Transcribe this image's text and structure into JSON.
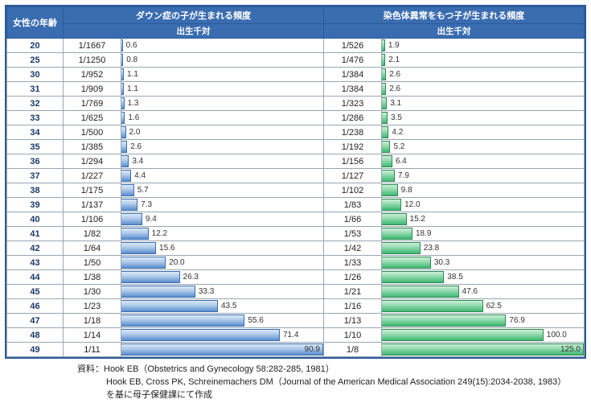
{
  "headers": {
    "age": "女性の年齢",
    "ds_title": "ダウン症の子が生まれる頻度",
    "ds_sub": "出生千対",
    "ab_title": "染色体異常をもつ子が生まれる頻度",
    "ab_sub": "出生千対"
  },
  "ds_max": 91,
  "ab_max": 125,
  "colors": {
    "header_bg": "#3a6cb0",
    "border": "#2a5a9a",
    "blue_bar_top": "#dce9f7",
    "blue_bar_bottom": "#5a8fd0",
    "green_bar_top": "#cdeed9",
    "green_bar_bottom": "#3fb873"
  },
  "rows": [
    {
      "age": "20",
      "ds_ratio": "1/1667",
      "ds_val": 0.6,
      "ab_ratio": "1/526",
      "ab_val": 1.9
    },
    {
      "age": "25",
      "ds_ratio": "1/1250",
      "ds_val": 0.8,
      "ab_ratio": "1/476",
      "ab_val": 2.1
    },
    {
      "age": "30",
      "ds_ratio": "1/952",
      "ds_val": 1.1,
      "ab_ratio": "1/384",
      "ab_val": 2.6
    },
    {
      "age": "31",
      "ds_ratio": "1/909",
      "ds_val": 1.1,
      "ab_ratio": "1/384",
      "ab_val": 2.6
    },
    {
      "age": "32",
      "ds_ratio": "1/769",
      "ds_val": 1.3,
      "ab_ratio": "1/323",
      "ab_val": 3.1
    },
    {
      "age": "33",
      "ds_ratio": "1/625",
      "ds_val": 1.6,
      "ab_ratio": "1/286",
      "ab_val": 3.5
    },
    {
      "age": "34",
      "ds_ratio": "1/500",
      "ds_val": 2.0,
      "ab_ratio": "1/238",
      "ab_val": 4.2
    },
    {
      "age": "35",
      "ds_ratio": "1/385",
      "ds_val": 2.6,
      "ab_ratio": "1/192",
      "ab_val": 5.2
    },
    {
      "age": "36",
      "ds_ratio": "1/294",
      "ds_val": 3.4,
      "ab_ratio": "1/156",
      "ab_val": 6.4
    },
    {
      "age": "37",
      "ds_ratio": "1/227",
      "ds_val": 4.4,
      "ab_ratio": "1/127",
      "ab_val": 7.9
    },
    {
      "age": "38",
      "ds_ratio": "1/175",
      "ds_val": 5.7,
      "ab_ratio": "1/102",
      "ab_val": 9.8
    },
    {
      "age": "39",
      "ds_ratio": "1/137",
      "ds_val": 7.3,
      "ab_ratio": "1/83",
      "ab_val": 12.0
    },
    {
      "age": "40",
      "ds_ratio": "1/106",
      "ds_val": 9.4,
      "ab_ratio": "1/66",
      "ab_val": 15.2
    },
    {
      "age": "41",
      "ds_ratio": "1/82",
      "ds_val": 12.2,
      "ab_ratio": "1/53",
      "ab_val": 18.9
    },
    {
      "age": "42",
      "ds_ratio": "1/64",
      "ds_val": 15.6,
      "ab_ratio": "1/42",
      "ab_val": 23.8
    },
    {
      "age": "43",
      "ds_ratio": "1/50",
      "ds_val": 20.0,
      "ab_ratio": "1/33",
      "ab_val": 30.3
    },
    {
      "age": "44",
      "ds_ratio": "1/38",
      "ds_val": 26.3,
      "ab_ratio": "1/26",
      "ab_val": 38.5
    },
    {
      "age": "45",
      "ds_ratio": "1/30",
      "ds_val": 33.3,
      "ab_ratio": "1/21",
      "ab_val": 47.6
    },
    {
      "age": "46",
      "ds_ratio": "1/23",
      "ds_val": 43.5,
      "ab_ratio": "1/16",
      "ab_val": 62.5
    },
    {
      "age": "47",
      "ds_ratio": "1/18",
      "ds_val": 55.6,
      "ab_ratio": "1/13",
      "ab_val": 76.9
    },
    {
      "age": "48",
      "ds_ratio": "1/14",
      "ds_val": 71.4,
      "ab_ratio": "1/10",
      "ab_val": 100.0
    },
    {
      "age": "49",
      "ds_ratio": "1/11",
      "ds_val": 90.9,
      "ab_ratio": "1/8",
      "ab_val": 125.0
    }
  ],
  "sources": {
    "line1": "資料：Hook EB（Obstetrics and Gynecology 58:282-285, 1981）",
    "line2": "Hook EB, Cross PK, Schreinemachers DM（Journal of the American Medical Association 249(15):2034-2038, 1983）",
    "line3": "を基に母子保健課にて作成"
  }
}
